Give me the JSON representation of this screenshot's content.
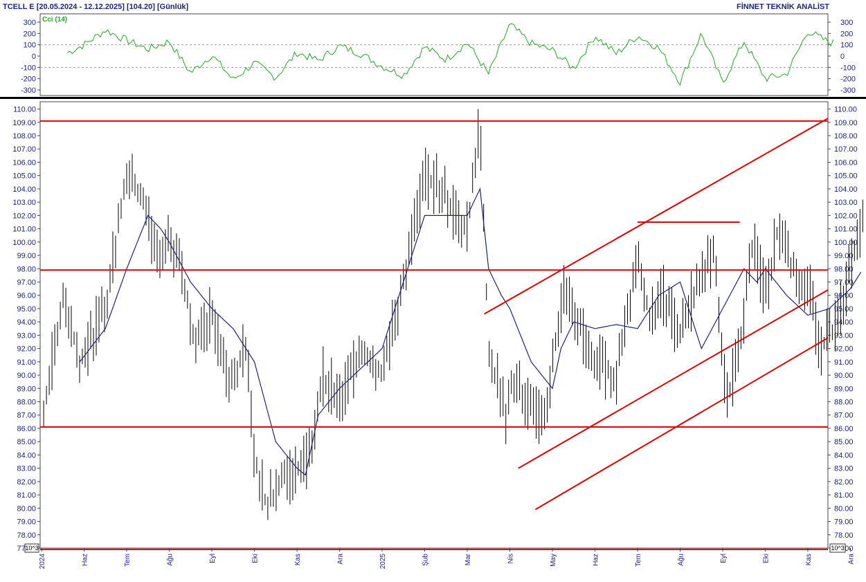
{
  "header": {
    "title": "TCELL E  [20.05.2024 - 12.12.2025]  [104.20]  [Günlük]",
    "brand": "FİNNET TEKNİK ANALİST"
  },
  "exponent_label": "10^3",
  "colors": {
    "price_bars": "#000000",
    "moving_average": "#1a237e",
    "trend_lines": "#dd0000",
    "cci": "#22aa22",
    "axis_text": "#1a237e"
  },
  "chart_data": [
    {
      "type": "line",
      "name": "cci-panel",
      "legend": "Cci (14)",
      "ylim": [
        -300,
        300
      ],
      "y_ticks": [
        300,
        200,
        100,
        0,
        -100,
        -200,
        -300
      ],
      "reference_lines": [
        100,
        -100
      ],
      "t": [
        0,
        0.5,
        1,
        1.5,
        2,
        2.5,
        3,
        3.5,
        4,
        4.5,
        5,
        5.5,
        6,
        6.5,
        7,
        7.5,
        8,
        8.5,
        9,
        9.5,
        10,
        10.5,
        11,
        11.5,
        12,
        12.5,
        13,
        13.5,
        14,
        14.5,
        15,
        15.5,
        16,
        16.5,
        17,
        17.5,
        18,
        18.5
      ],
      "values": [
        90,
        10,
        100,
        230,
        140,
        60,
        130,
        -150,
        10,
        -210,
        -60,
        -190,
        30,
        -40,
        90,
        20,
        -90,
        -170,
        80,
        -30,
        120,
        -160,
        280,
        110,
        50,
        -110,
        180,
        20,
        180,
        70,
        -230,
        200,
        -240,
        130,
        -200,
        -160,
        220,
        120
      ]
    },
    {
      "type": "bar",
      "name": "price-panel",
      "style": "high-low bars with moving average",
      "ylim": [
        77,
        110
      ],
      "y_ticks": [
        110,
        109,
        108,
        107,
        106,
        105,
        104,
        103,
        102,
        101,
        100,
        99,
        98,
        97,
        96,
        95,
        94,
        93,
        92,
        91,
        90,
        89,
        88,
        87,
        86,
        85,
        84,
        83,
        82,
        81,
        80,
        79,
        78,
        77
      ],
      "x_labels": [
        "2024",
        "Haz",
        "Tem",
        "Ağu",
        "Eyl",
        "Eki",
        "Kas",
        "Ara",
        "2025",
        "Şub",
        "Mar",
        "Nis",
        "May",
        "Haz",
        "Tem",
        "Ağu",
        "Eyl",
        "Eki",
        "Kas",
        "Ara"
      ],
      "last_value": 104.2,
      "price_path": {
        "t": [
          0,
          0.5,
          0.9,
          1.5,
          2,
          2.4,
          2.7,
          3,
          3.3,
          3.6,
          4,
          4.4,
          4.8,
          5,
          5.3,
          5.6,
          6,
          6.3,
          6.6,
          7,
          7.5,
          8,
          8.5,
          9,
          9.4,
          9.7,
          10,
          10.3,
          10.5,
          10.9,
          11,
          11.4,
          11.8,
          12,
          12.3,
          12.6,
          13,
          13.5,
          14,
          14.3,
          14.6,
          15,
          15.4,
          15.8,
          16.1,
          16.4,
          16.7,
          17,
          17.3,
          17.6,
          18,
          18.3,
          18.7,
          19,
          19.3
        ],
        "close": [
          86,
          96,
          91,
          95,
          105,
          103,
          99,
          100,
          98,
          92,
          95,
          89,
          92,
          84,
          80,
          82,
          83,
          84,
          90,
          88,
          92,
          90,
          97,
          105,
          104,
          102,
          101,
          109,
          92,
          87,
          90,
          88,
          86,
          91,
          97,
          94,
          91,
          90,
          99,
          94,
          96,
          93,
          97,
          99,
          88,
          92,
          100,
          96,
          101,
          98,
          97,
          92,
          94,
          98,
          102
        ]
      },
      "moving_average": {
        "t": [
          0.9,
          1.5,
          2,
          2.5,
          2.8,
          3,
          3.5,
          4,
          4.5,
          5,
          5.5,
          6,
          6.2,
          6.5,
          7,
          7.5,
          8,
          8.5,
          9,
          9.5,
          10,
          10.3,
          10.5,
          10.8,
          11,
          11.5,
          12,
          12.2,
          12.5,
          13,
          13.5,
          14,
          14.5,
          15,
          15.5,
          16,
          16.5,
          16.8,
          17,
          17.5,
          18,
          18.5,
          19,
          19.3
        ],
        "values": [
          91,
          93.5,
          98,
          102,
          101,
          100,
          97,
          95,
          93.5,
          91,
          85,
          83,
          82.5,
          87,
          89,
          90.5,
          92,
          97,
          102,
          102,
          102,
          104,
          98,
          96,
          95,
          91,
          89,
          92,
          94,
          93.5,
          93.8,
          93.5,
          96,
          97,
          92,
          95,
          98,
          97,
          98,
          96,
          94.5,
          95,
          96.5,
          98
        ]
      },
      "horizontal_lines": [
        109.1,
        97.9,
        86.1,
        76.9
      ],
      "resistance_segment": {
        "t": [
          14,
          16.4
        ],
        "value": 101.5
      },
      "trend_channel": [
        {
          "t": [
            10.4,
            19.5
          ],
          "values": [
            94.6,
            109.3
          ]
        },
        {
          "t": [
            11.2,
            19.5
          ],
          "values": [
            83,
            96.4
          ]
        },
        {
          "t": [
            11.6,
            19.5
          ],
          "values": [
            79.9,
            92.8
          ]
        }
      ]
    }
  ]
}
